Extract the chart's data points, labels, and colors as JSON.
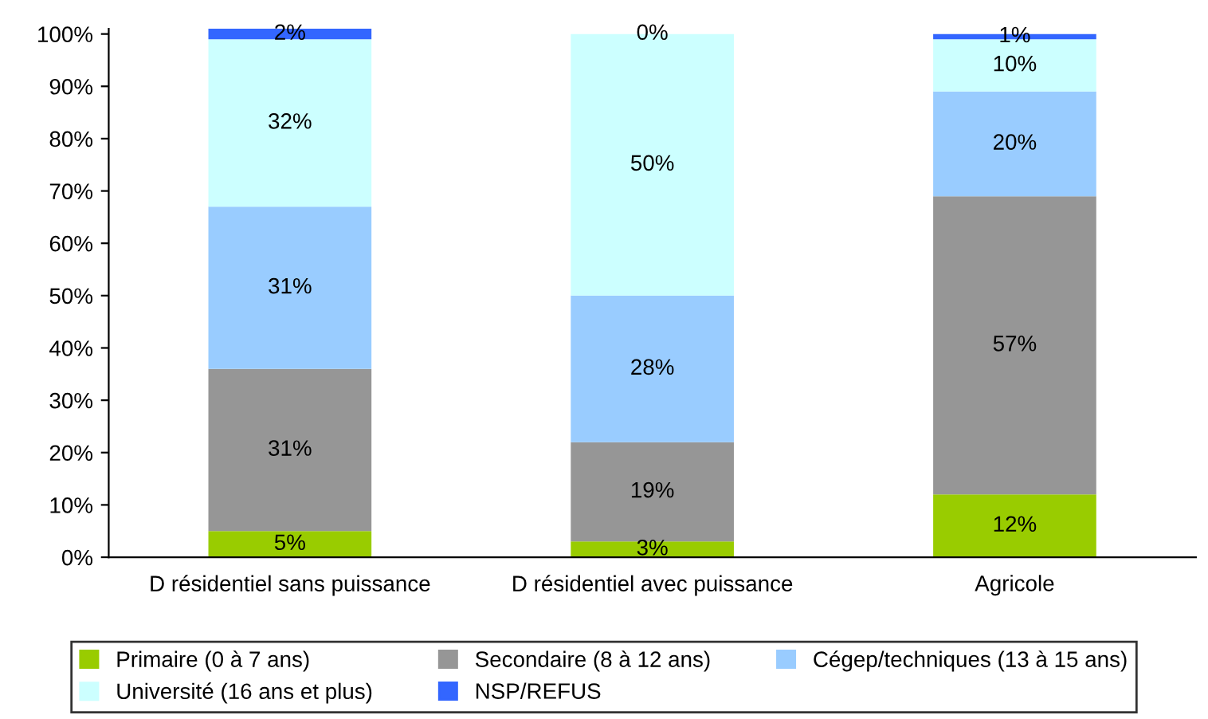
{
  "chart_data": {
    "type": "bar",
    "stacked": true,
    "categories": [
      "D résidentiel sans puissance",
      "D résidentiel avec puissance",
      "Agricole"
    ],
    "series": [
      {
        "name": "Primaire (0 à 7 ans)",
        "color": "#99cc00",
        "values": [
          5,
          3,
          12
        ],
        "value_labels": [
          "5%",
          "3%",
          "12%"
        ]
      },
      {
        "name": "Secondaire (8 à 12 ans)",
        "color": "#969696",
        "values": [
          31,
          19,
          57
        ],
        "value_labels": [
          "31%",
          "19%",
          "57%"
        ]
      },
      {
        "name": "Cégep/techniques (13 à 15 ans)",
        "color": "#99ccff",
        "values": [
          31,
          28,
          20
        ],
        "value_labels": [
          "31%",
          "28%",
          "20%"
        ]
      },
      {
        "name": "Université (16 ans et plus)",
        "color": "#ccffff",
        "values": [
          32,
          50,
          10
        ],
        "value_labels": [
          "32%",
          "50%",
          "10%"
        ]
      },
      {
        "name": "NSP/REFUS",
        "color": "#3366ff",
        "values": [
          2,
          0,
          1
        ],
        "value_labels": [
          "2%",
          "0%",
          "1%"
        ]
      }
    ],
    "ylim": [
      0,
      101
    ],
    "yticks": [
      {
        "value": 0,
        "label": "0%"
      },
      {
        "value": 10,
        "label": "10%"
      },
      {
        "value": 20,
        "label": "20%"
      },
      {
        "value": 30,
        "label": "30%"
      },
      {
        "value": 40,
        "label": "40%"
      },
      {
        "value": 50,
        "label": "50%"
      },
      {
        "value": 60,
        "label": "60%"
      },
      {
        "value": 70,
        "label": "70%"
      },
      {
        "value": 80,
        "label": "80%"
      },
      {
        "value": 90,
        "label": "90%"
      },
      {
        "value": 100,
        "label": "100%"
      }
    ],
    "grid": false,
    "legend": "bottom"
  }
}
